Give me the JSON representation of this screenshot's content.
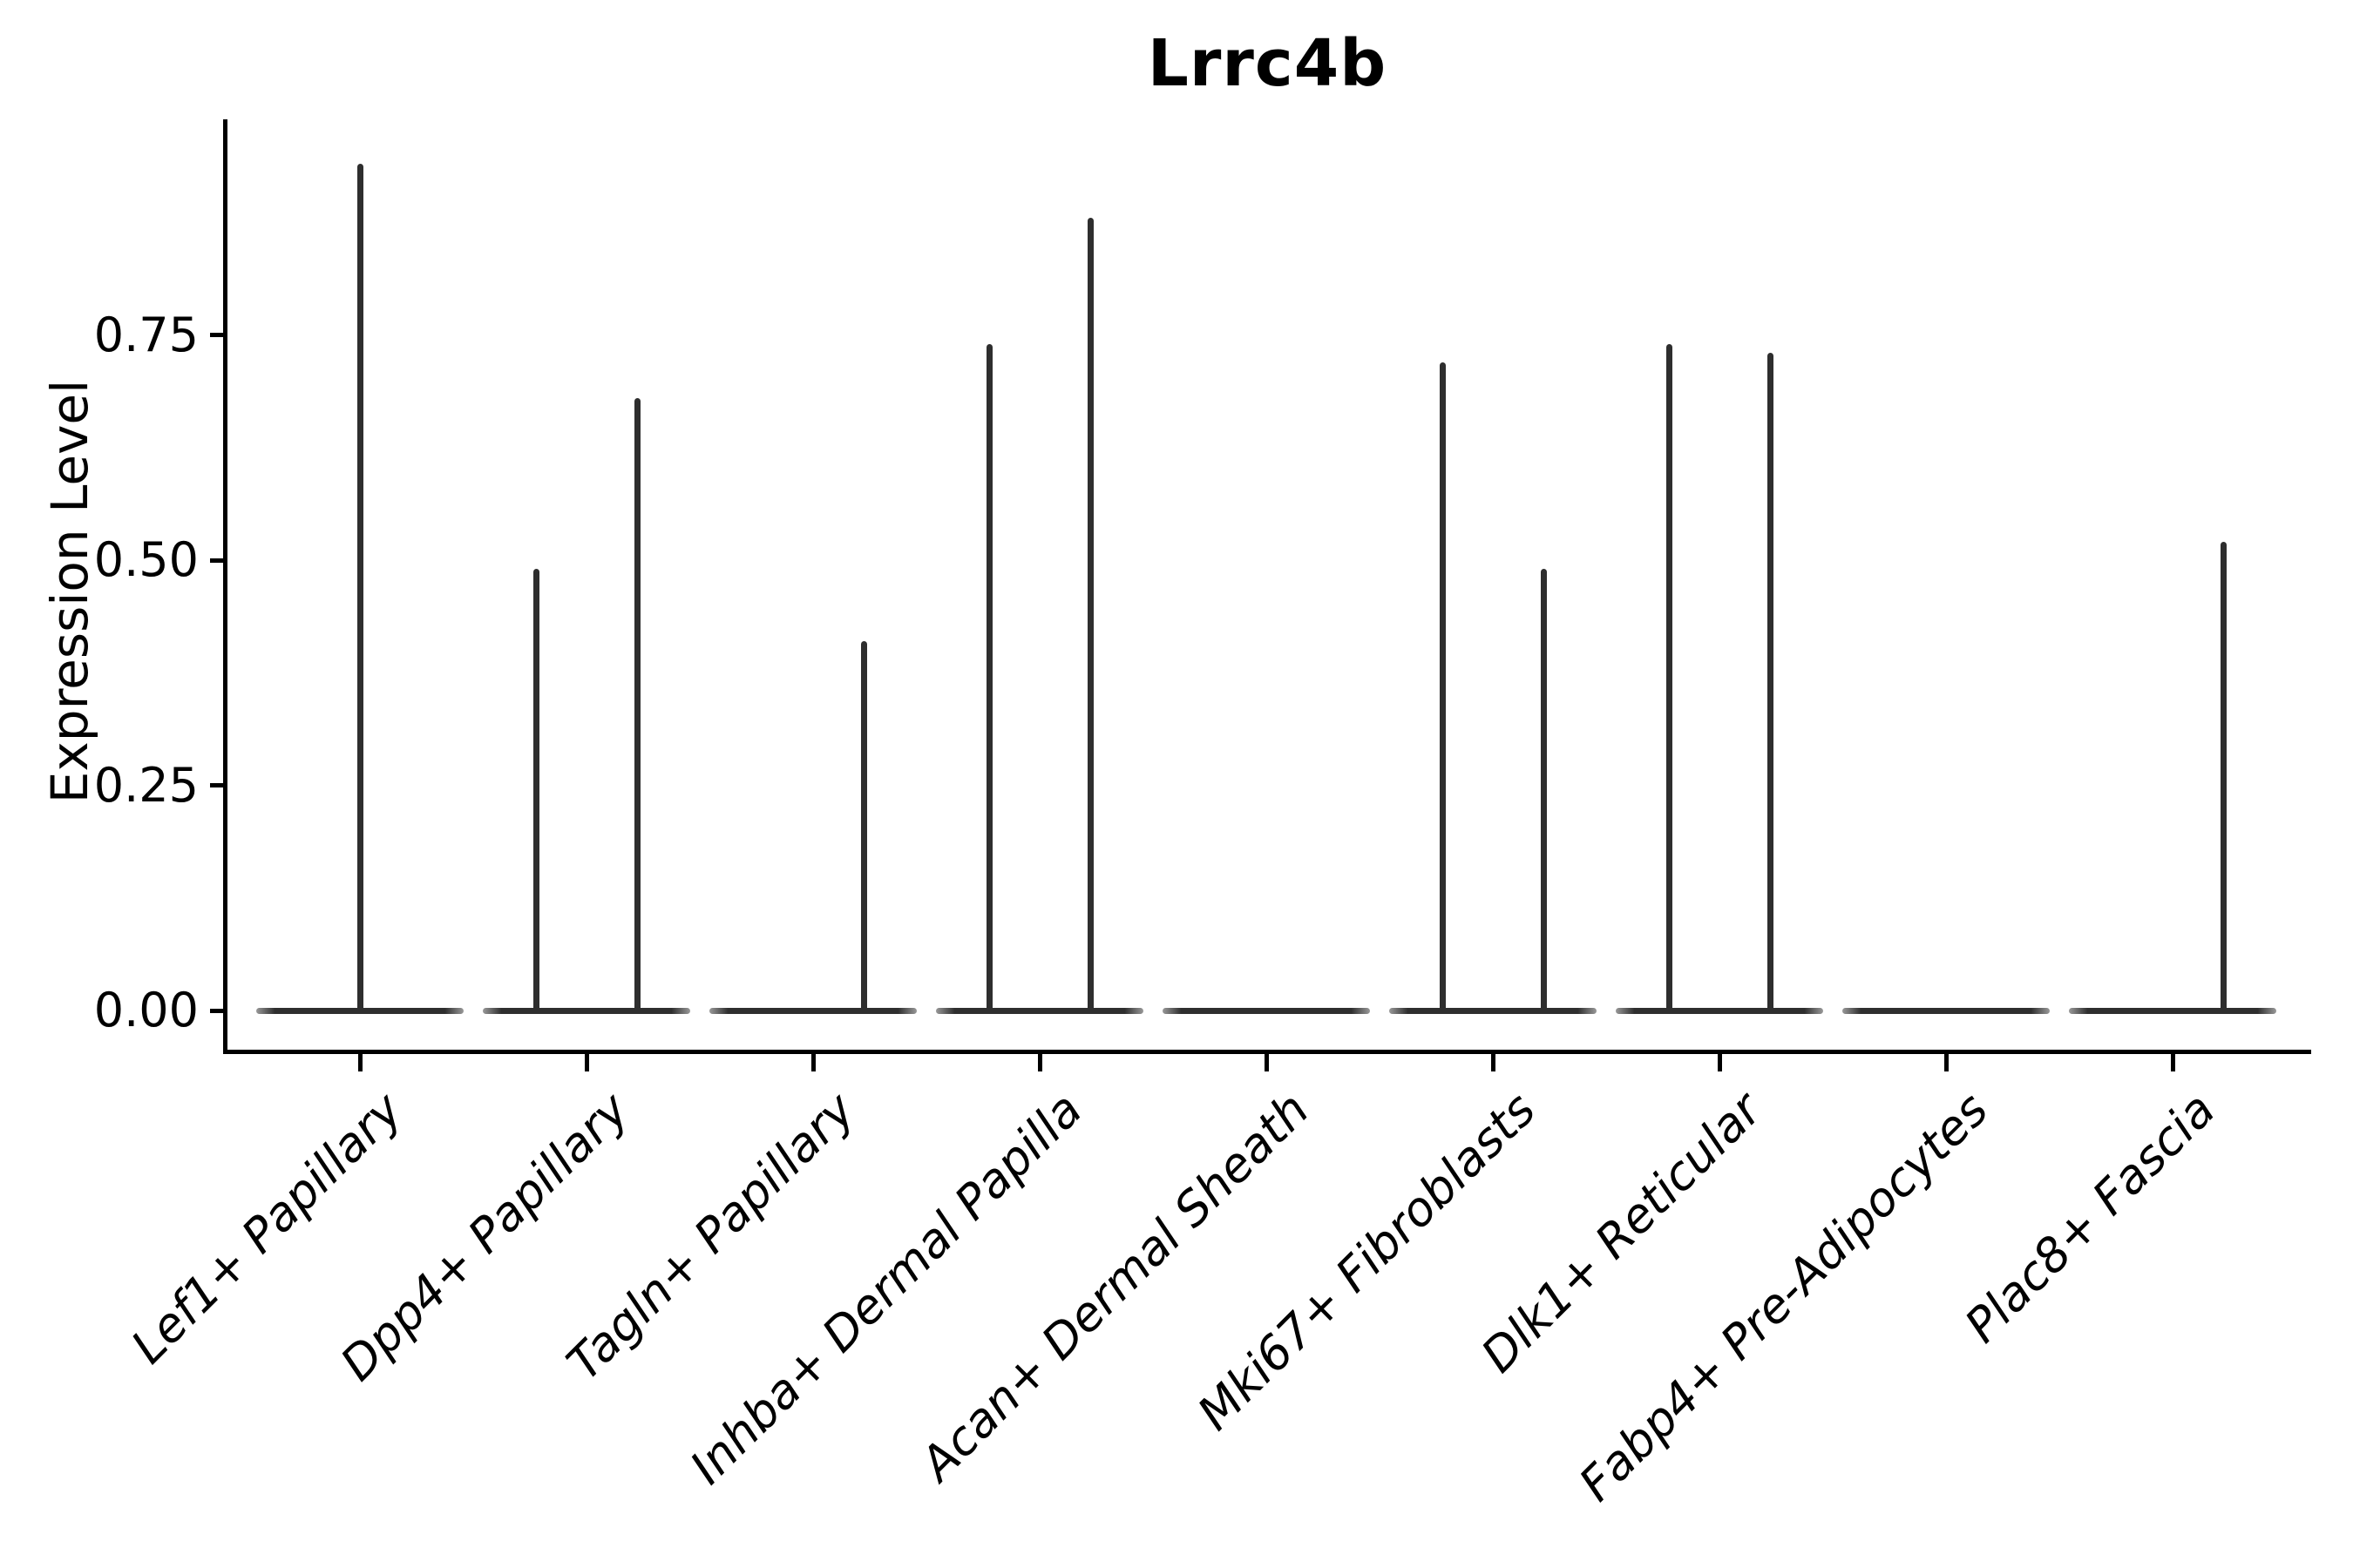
{
  "title": "Lrrc4b",
  "axes": {
    "ylabel": "Expression Level",
    "ytick_labels": [
      "0.00",
      "0.25",
      "0.50",
      "0.75"
    ]
  },
  "colors": {
    "violin_line": "#2e2e2e",
    "axis": "#000000",
    "text": "#000000",
    "background": "#ffffff"
  },
  "chart_data": {
    "type": "violin",
    "title": "Lrrc4b",
    "xlabel": "",
    "ylabel": "Expression Level",
    "ylim": [
      0,
      1.0
    ],
    "yticks": [
      0,
      0.25,
      0.5,
      0.75
    ],
    "grid": false,
    "legend": false,
    "note": "All violins are collapsed flat at expression 0 with thin density spikes reaching the listed maximum expression values; spike x-position is the offset within the category (center, left quarter, right quarter).",
    "categories": [
      "Lef1+ Papillary",
      "Dpp4+ Papillary",
      "Tagln+ Papillary",
      "Inhba+ Dermal Papilla",
      "Acan+ Dermal Sheath",
      "Mki67+ Fibroblasts",
      "Dlk1+ Reticular",
      "Fabp4+ Pre-Adipocytes",
      "Plac8+ Fascia"
    ],
    "violins": [
      {
        "category": "Lef1+ Papillary",
        "baseline_value": 0,
        "spikes": [
          {
            "position": "center",
            "value": 0.94
          }
        ]
      },
      {
        "category": "Dpp4+ Papillary",
        "baseline_value": 0,
        "spikes": [
          {
            "position": "left",
            "value": 0.49
          },
          {
            "position": "right",
            "value": 0.68
          }
        ]
      },
      {
        "category": "Tagln+ Papillary",
        "baseline_value": 0,
        "spikes": [
          {
            "position": "right",
            "value": 0.41
          }
        ]
      },
      {
        "category": "Inhba+ Dermal Papilla",
        "baseline_value": 0,
        "spikes": [
          {
            "position": "left",
            "value": 0.74
          },
          {
            "position": "right",
            "value": 0.88
          }
        ]
      },
      {
        "category": "Acan+ Dermal Sheath",
        "baseline_value": 0,
        "spikes": []
      },
      {
        "category": "Mki67+ Fibroblasts",
        "baseline_value": 0,
        "spikes": [
          {
            "position": "left",
            "value": 0.72
          },
          {
            "position": "right",
            "value": 0.49
          }
        ]
      },
      {
        "category": "Dlk1+ Reticular",
        "baseline_value": 0,
        "spikes": [
          {
            "position": "left",
            "value": 0.74
          },
          {
            "position": "right",
            "value": 0.73
          }
        ]
      },
      {
        "category": "Fabp4+ Pre-Adipocytes",
        "baseline_value": 0,
        "spikes": []
      },
      {
        "category": "Plac8+ Fascia",
        "baseline_value": 0,
        "spikes": [
          {
            "position": "right",
            "value": 0.52
          }
        ]
      }
    ]
  }
}
